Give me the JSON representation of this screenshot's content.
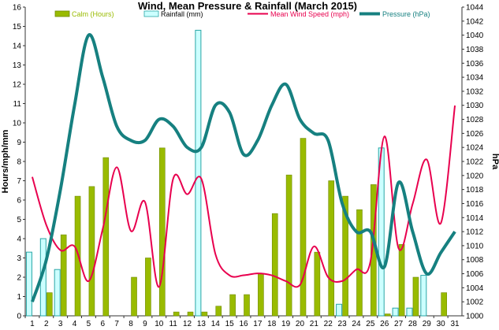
{
  "chart_data": {
    "type": "bar",
    "title": "Wind, Mean Pressure & Rainfall (March 2015)",
    "ylabel": "Hours/mph/mm",
    "y2label": "hPa",
    "ylim": [
      0,
      16
    ],
    "y_ticks": [
      0,
      1,
      2,
      3,
      4,
      5,
      6,
      7,
      8,
      9,
      10,
      11,
      12,
      13,
      14,
      15,
      16
    ],
    "y2lim": [
      1000,
      1044
    ],
    "y2_ticks": [
      1000,
      1002,
      1004,
      1006,
      1008,
      1010,
      1012,
      1014,
      1016,
      1018,
      1020,
      1022,
      1024,
      1026,
      1028,
      1030,
      1032,
      1034,
      1036,
      1038,
      1040,
      1042,
      1044
    ],
    "categories": [
      "1",
      "2",
      "3",
      "4",
      "5",
      "6",
      "7",
      "8",
      "9",
      "10",
      "11",
      "12",
      "13",
      "14",
      "15",
      "16",
      "17",
      "18",
      "19",
      "20",
      "21",
      "22",
      "23",
      "24",
      "25",
      "26",
      "27",
      "28",
      "29",
      "30",
      "31"
    ],
    "legend_position": "top",
    "series": [
      {
        "name": "Calm (Hours)",
        "kind": "bar",
        "axis": "left",
        "color": "#99bb00",
        "values": [
          0,
          1.2,
          4.2,
          6.2,
          6.7,
          8.2,
          0,
          2.0,
          3.0,
          8.7,
          0.2,
          0.2,
          0.2,
          0.5,
          1.1,
          1.1,
          2.2,
          5.3,
          7.3,
          9.2,
          3.3,
          7.0,
          6.2,
          5.5,
          6.8,
          0.1,
          3.7,
          2.0,
          0,
          1.2,
          0
        ]
      },
      {
        "name": "Rainfall (mm)",
        "kind": "bar",
        "axis": "left",
        "color": "#ccffff",
        "stroke": "#2aa6a6",
        "values": [
          3.3,
          4.0,
          2.4,
          0,
          0,
          0,
          0,
          0,
          0,
          0,
          0,
          0,
          14.8,
          0,
          0,
          0,
          0,
          0,
          0,
          0,
          0,
          0,
          0.6,
          0,
          0,
          8.7,
          0.4,
          0.4,
          2.1,
          0,
          0
        ]
      },
      {
        "name": "Mean Wind Speed (mph)",
        "kind": "line",
        "axis": "left",
        "color": "#e8004e",
        "values": [
          7.2,
          4.7,
          3.4,
          3.6,
          1.8,
          4.5,
          7.7,
          4.4,
          5.9,
          1.5,
          7.1,
          6.3,
          7.1,
          3.2,
          2.1,
          2.1,
          2.2,
          2.1,
          1.8,
          1.6,
          3.6,
          2.0,
          1.8,
          2.4,
          2.8,
          9.3,
          3.5,
          5.8,
          8.1,
          4.8,
          10.9
        ]
      },
      {
        "name": "Pressure (hPa)",
        "kind": "line",
        "axis": "right",
        "color": "#168080",
        "values": [
          1002,
          1008,
          1018,
          1030,
          1040,
          1034,
          1027,
          1025,
          1025,
          1028,
          1027,
          1024,
          1024,
          1030,
          1029,
          1023,
          1025,
          1030,
          1033,
          1028,
          1026,
          1025,
          1016,
          1012,
          1012,
          1007,
          1019,
          1012,
          1006,
          1009,
          1012
        ]
      }
    ]
  }
}
